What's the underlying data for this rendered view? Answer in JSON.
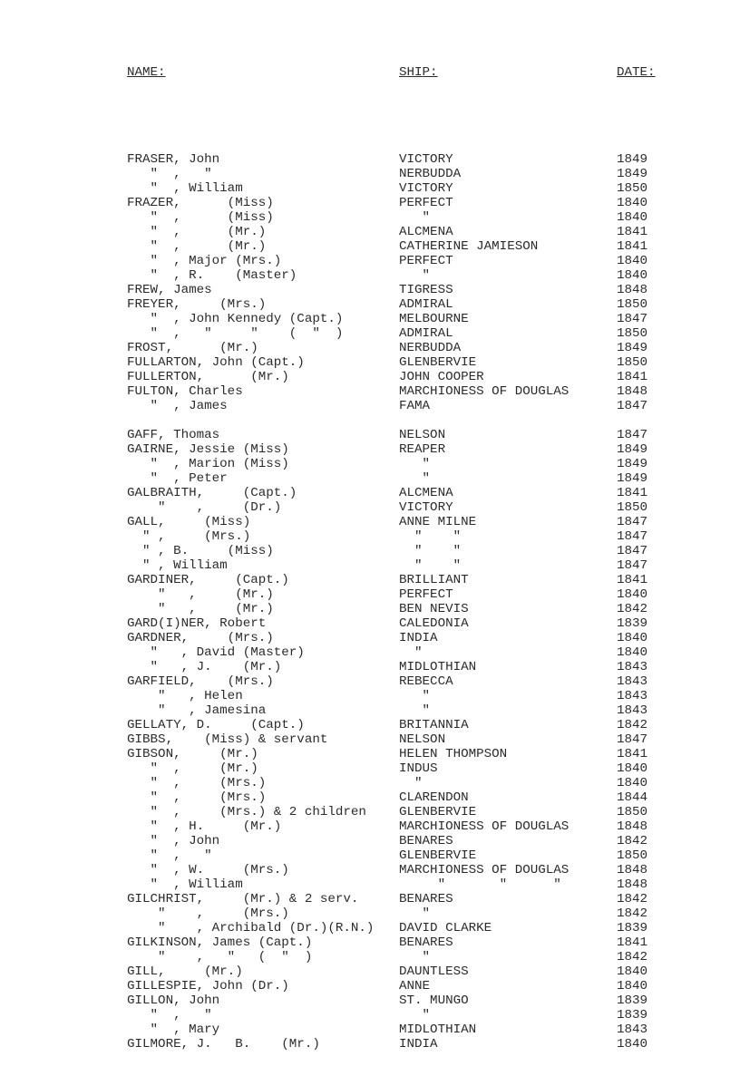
{
  "headers": {
    "name": "NAME:",
    "ship": "SHIP:",
    "date": "DATE:"
  },
  "groups": [
    [
      {
        "name": "FRASER, John",
        "ship": "VICTORY",
        "date": "1849"
      },
      {
        "name": "   \"  ,   \"",
        "ship": "NERBUDDA",
        "date": "1849"
      },
      {
        "name": "   \"  , William",
        "ship": "VICTORY",
        "date": "1850"
      },
      {
        "name": "FRAZER,      (Miss)",
        "ship": "PERFECT",
        "date": "1840"
      },
      {
        "name": "   \"  ,      (Miss)",
        "ship": "   \"",
        "date": "1840"
      },
      {
        "name": "   \"  ,      (Mr.)",
        "ship": "ALCMENA",
        "date": "1841"
      },
      {
        "name": "   \"  ,      (Mr.)",
        "ship": "CATHERINE JAMIESON",
        "date": "1841"
      },
      {
        "name": "   \"  , Major (Mrs.)",
        "ship": "PERFECT",
        "date": "1840"
      },
      {
        "name": "   \"  , R.    (Master)",
        "ship": "   \"",
        "date": "1840"
      },
      {
        "name": "FREW, James",
        "ship": "TIGRESS",
        "date": "1848"
      },
      {
        "name": "FREYER,     (Mrs.)",
        "ship": "ADMIRAL",
        "date": "1850"
      },
      {
        "name": "   \"  , John Kennedy (Capt.)",
        "ship": "MELBOURNE",
        "date": "1847"
      },
      {
        "name": "   \"  ,   \"     \"    (  \"  )",
        "ship": "ADMIRAL",
        "date": "1850"
      },
      {
        "name": "FROST,      (Mr.)",
        "ship": "NERBUDDA",
        "date": "1849"
      },
      {
        "name": "FULLARTON, John (Capt.)",
        "ship": "GLENBERVIE",
        "date": "1850"
      },
      {
        "name": "FULLERTON,      (Mr.)",
        "ship": "JOHN COOPER",
        "date": "1841"
      },
      {
        "name": "FULTON, Charles",
        "ship": "MARCHIONESS OF DOUGLAS",
        "date": "1848"
      },
      {
        "name": "   \"  , James",
        "ship": "FAMA",
        "date": "1847"
      }
    ],
    [
      {
        "name": "GAFF, Thomas",
        "ship": "NELSON",
        "date": "1847"
      },
      {
        "name": "GAIRNE, Jessie (Miss)",
        "ship": "REAPER",
        "date": "1849"
      },
      {
        "name": "   \"  , Marion (Miss)",
        "ship": "   \"",
        "date": "1849"
      },
      {
        "name": "   \"  , Peter",
        "ship": "   \"",
        "date": "1849"
      },
      {
        "name": "GALBRAITH,     (Capt.)",
        "ship": "ALCMENA",
        "date": "1841"
      },
      {
        "name": "    \"    ,     (Dr.)",
        "ship": "VICTORY",
        "date": "1850"
      },
      {
        "name": "GALL,     (Miss)",
        "ship": "ANNE MILNE",
        "date": "1847"
      },
      {
        "name": "  \" ,     (Mrs.)",
        "ship": "  \"    \"",
        "date": "1847"
      },
      {
        "name": "  \" , B.     (Miss)",
        "ship": "  \"    \"",
        "date": "1847"
      },
      {
        "name": "  \" , William",
        "ship": "  \"    \"",
        "date": "1847"
      },
      {
        "name": "GARDINER,     (Capt.)",
        "ship": "BRILLIANT",
        "date": "1841"
      },
      {
        "name": "    \"   ,     (Mr.)",
        "ship": "PERFECT",
        "date": "1840"
      },
      {
        "name": "    \"   ,     (Mr.)",
        "ship": "BEN NEVIS",
        "date": "1842"
      },
      {
        "name": "GARD(I)NER, Robert",
        "ship": "CALEDONIA",
        "date": "1839"
      },
      {
        "name": "GARDNER,     (Mrs.)",
        "ship": "INDIA",
        "date": "1840"
      },
      {
        "name": "   \"   , David (Master)",
        "ship": "  \"",
        "date": "1840"
      },
      {
        "name": "   \"   , J.    (Mr.)",
        "ship": "MIDLOTHIAN",
        "date": "1843"
      },
      {
        "name": "GARFIELD,    (Mrs.)",
        "ship": "REBECCA",
        "date": "1843"
      },
      {
        "name": "    \"   , Helen",
        "ship": "   \"",
        "date": "1843"
      },
      {
        "name": "    \"   , Jamesina",
        "ship": "   \"",
        "date": "1843"
      },
      {
        "name": "GELLATY, D.     (Capt.)",
        "ship": "BRITANNIA",
        "date": "1842"
      },
      {
        "name": "GIBBS,    (Miss) & servant",
        "ship": "NELSON",
        "date": "1847"
      },
      {
        "name": "GIBSON,     (Mr.)",
        "ship": "HELEN THOMPSON",
        "date": "1841"
      },
      {
        "name": "   \"  ,     (Mr.)",
        "ship": "INDUS",
        "date": "1840"
      },
      {
        "name": "   \"  ,     (Mrs.)",
        "ship": "  \"",
        "date": "1840"
      },
      {
        "name": "   \"  ,     (Mrs.)",
        "ship": "CLARENDON",
        "date": "1844"
      },
      {
        "name": "   \"  ,     (Mrs.) & 2 children",
        "ship": "GLENBERVIE",
        "date": "1850"
      },
      {
        "name": "   \"  , H.     (Mr.)",
        "ship": "MARCHIONESS OF DOUGLAS",
        "date": "1848"
      },
      {
        "name": "   \"  , John",
        "ship": "BENARES",
        "date": "1842"
      },
      {
        "name": "   \"  ,   \"",
        "ship": "GLENBERVIE",
        "date": "1850"
      },
      {
        "name": "   \"  , W.     (Mrs.)",
        "ship": "MARCHIONESS OF DOUGLAS",
        "date": "1848"
      },
      {
        "name": "   \"  , William",
        "ship": "     \"       \"      \"",
        "date": "1848"
      },
      {
        "name": "GILCHRIST,     (Mr.) & 2 serv.",
        "ship": "BENARES",
        "date": "1842"
      },
      {
        "name": "    \"    ,     (Mrs.)",
        "ship": "   \"",
        "date": "1842"
      },
      {
        "name": "    \"    , Archibald (Dr.)(R.N.)",
        "ship": "DAVID CLARKE",
        "date": "1839"
      },
      {
        "name": "GILKINSON, James (Capt.)",
        "ship": "BENARES",
        "date": "1841"
      },
      {
        "name": "    \"    ,   \"   (  \"  )",
        "ship": "   \"",
        "date": "1842"
      },
      {
        "name": "GILL,     (Mr.)",
        "ship": "DAUNTLESS",
        "date": "1840"
      },
      {
        "name": "GILLESPIE, John (Dr.)",
        "ship": "ANNE",
        "date": "1840"
      },
      {
        "name": "GILLON, John",
        "ship": "ST. MUNGO",
        "date": "1839"
      },
      {
        "name": "   \"  ,   \"",
        "ship": "   \"",
        "date": "1839"
      },
      {
        "name": "   \"  , Mary",
        "ship": "MIDLOTHIAN",
        "date": "1843"
      },
      {
        "name": "GILMORE, J.   B.    (Mr.)",
        "ship": "INDIA",
        "date": "1840"
      }
    ]
  ]
}
